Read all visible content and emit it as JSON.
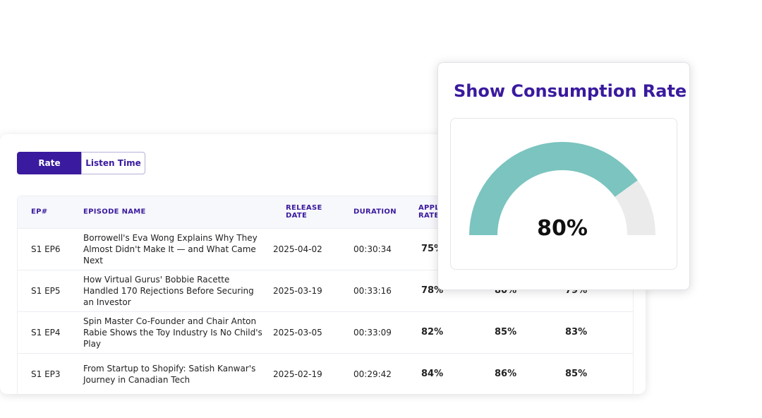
{
  "toggle": {
    "options": [
      "Rate",
      "Listen Time"
    ],
    "active": 0
  },
  "table": {
    "headers": [
      "EP#",
      "EPISODE NAME",
      "RELEASE DATE",
      "DURATION",
      "APPLE RATE",
      "",
      ""
    ],
    "rows": [
      [
        "S1 EP6",
        "Borrowell's Eva Wong Explains Why They Almost Didn't Make It — and What Came Next",
        "2025-04-02",
        "00:30:34",
        "75%",
        "",
        ""
      ],
      [
        "S1 EP5",
        "How Virtual Gurus' Bobbie Racette Handled 170 Rejections Before Securing an Investor",
        "2025-03-19",
        "00:33:16",
        "78%",
        "80%",
        "79%"
      ],
      [
        "S1 EP4",
        "Spin Master Co-Founder and Chair Anton Rabie Shows the Toy Industry Is No Child's Play",
        "2025-03-05",
        "00:33:09",
        "82%",
        "85%",
        "83%"
      ],
      [
        "S1 EP3",
        "From Startup to Shopify: Satish Kanwar's Journey in Canadian Tech",
        "2025-02-19",
        "00:29:42",
        "84%",
        "86%",
        "85%"
      ]
    ]
  },
  "gauge": {
    "title": "Show Consumption Rate",
    "value": 80,
    "value_label": "80%"
  }
}
